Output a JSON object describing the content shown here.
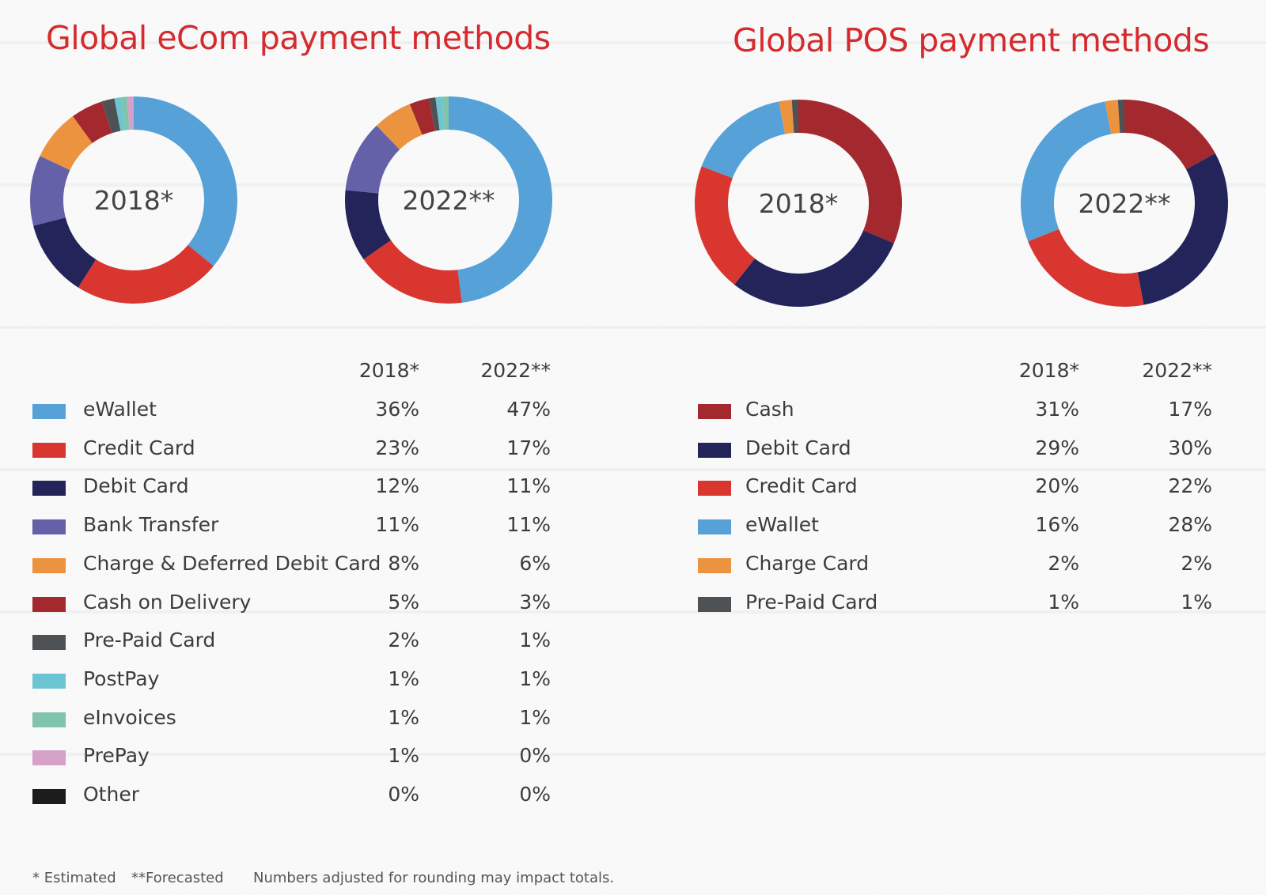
{
  "colors": {
    "eWallet": "#56a2d8",
    "Credit Card": "#d93630",
    "Debit Card": "#22245a",
    "Bank Transfer": "#6461a8",
    "Charge & Deferred Debit Card": "#ec9340",
    "Cash on Delivery": "#a3292e",
    "Pre-Paid Card": "#4f5255",
    "PostPay": "#6cc5d3",
    "eInvoices": "#80c4ad",
    "PrePay": "#d6a1c6",
    "Other": "#1c1c1c",
    "Cash": "#a3292e",
    "Charge Card": "#ec9340"
  },
  "header": {
    "ecom_title": "Global eCom payment methods",
    "pos_title": "Global POS payment methods"
  },
  "footnotes": {
    "estimated": "* Estimated",
    "forecasted": "**Forecasted",
    "rounding": "Numbers adjusted for rounding may impact totals."
  },
  "chart_data": [
    {
      "type": "pie",
      "title": "Global eCom payment methods",
      "columns": [
        "2018*",
        "2022**"
      ],
      "categories": [
        "eWallet",
        "Credit Card",
        "Debit Card",
        "Bank Transfer",
        "Charge & Deferred Debit Card",
        "Cash on Delivery",
        "Pre-Paid Card",
        "PostPay",
        "eInvoices",
        "PrePay",
        "Other"
      ],
      "series": [
        {
          "name": "2018*",
          "values": [
            36,
            23,
            12,
            11,
            8,
            5,
            2,
            1,
            1,
            1,
            0
          ]
        },
        {
          "name": "2022**",
          "values": [
            47,
            17,
            11,
            11,
            6,
            3,
            1,
            1,
            1,
            0,
            0
          ]
        }
      ],
      "value_labels": [
        [
          "36%",
          "23%",
          "12%",
          "11%",
          "8%",
          "5%",
          "2%",
          "1%",
          "1%",
          "1%",
          "0%"
        ],
        [
          "47%",
          "17%",
          "11%",
          "11%",
          "6%",
          "3%",
          "1%",
          "1%",
          "1%",
          "0%",
          "0%"
        ]
      ]
    },
    {
      "type": "pie",
      "title": "Global POS payment methods",
      "columns": [
        "2018*",
        "2022**"
      ],
      "categories": [
        "Cash",
        "Debit Card",
        "Credit Card",
        "eWallet",
        "Charge Card",
        "Pre-Paid Card"
      ],
      "series": [
        {
          "name": "2018*",
          "values": [
            31,
            29,
            20,
            16,
            2,
            1
          ]
        },
        {
          "name": "2022**",
          "values": [
            17,
            30,
            22,
            28,
            2,
            1
          ]
        }
      ],
      "value_labels": [
        [
          "31%",
          "29%",
          "20%",
          "16%",
          "2%",
          "1%"
        ],
        [
          "17%",
          "30%",
          "22%",
          "28%",
          "2%",
          "1%"
        ]
      ]
    }
  ]
}
